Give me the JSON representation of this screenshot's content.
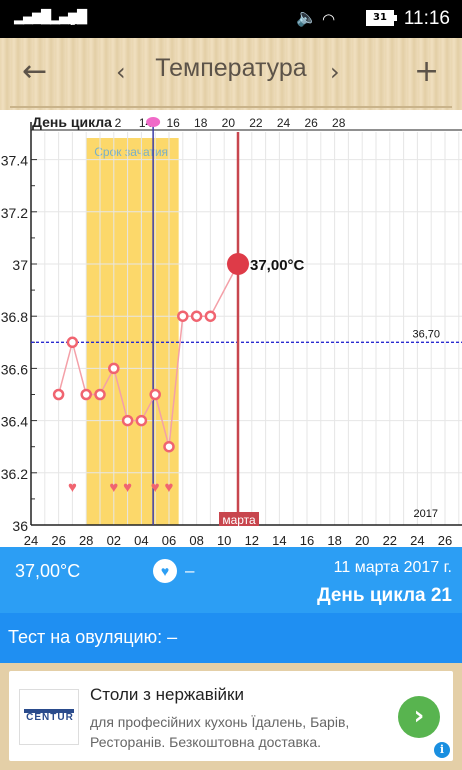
{
  "status_bar": {
    "time": "11:16",
    "battery": "31",
    "sim2_label": "2",
    "icons": [
      "signal-icon",
      "signal-icon",
      "volume-icon",
      "wifi-icon",
      "battery-icon"
    ]
  },
  "header": {
    "title": "Температура",
    "back_icon": "arrow-left-icon",
    "prev_icon": "chevron-left-icon",
    "next_icon": "chevron-right-icon",
    "add_icon": "plus-icon"
  },
  "chart_data": {
    "type": "line",
    "top_label": "День цикла",
    "cycle_ticks": [
      "2",
      "14",
      "16",
      "18",
      "20",
      "22",
      "24",
      "26",
      "28"
    ],
    "date_ticks": [
      "24",
      "26",
      "28",
      "02",
      "04",
      "06",
      "08",
      "10",
      "12",
      "14",
      "16",
      "18",
      "20",
      "22",
      "24",
      "26"
    ],
    "y_ticks": [
      "36",
      "36.2",
      "36.4",
      "36.6",
      "36.8",
      "37",
      "37.2",
      "37.4"
    ],
    "ylim": [
      36,
      37.46
    ],
    "series": [
      {
        "x_day_index": [
          2,
          3,
          4,
          5,
          6,
          7,
          8,
          9,
          10,
          11,
          12,
          13,
          14,
          15
        ],
        "values": [
          36.5,
          36.7,
          36.5,
          36.5,
          36.6,
          36.4,
          36.4,
          36.5,
          36.3,
          36.8,
          36.8,
          36.8,
          null,
          37.0
        ]
      }
    ],
    "hearts_day_index": [
      3,
      6,
      7,
      9,
      10
    ],
    "fertile_window": {
      "label": "Срок зачатия",
      "start_day_index": 4,
      "end_day_index": 10.7
    },
    "ovulation_day_index": 8.85,
    "today_day_index": 15,
    "today_label": "37,00°C",
    "cover_line": {
      "value": 36.7,
      "label": "36,70"
    },
    "month_label": "марта",
    "year_label": "2017"
  },
  "info": {
    "temperature": "37,00°C",
    "heart_icon": "heart-icon",
    "intercourse": "–",
    "date": "11 марта 2017 г.",
    "cycle_day": "День цикла 21"
  },
  "ovulation_test": {
    "label": "Тест на овуляцию:  –"
  },
  "ad": {
    "logo_text": "CENTUR",
    "title": "Столи з нержавійки",
    "description": "для професійних кухонь Їдалень, Барів, Ресторанів. Безкоштовна доставка.",
    "go_icon": "chevron-right-icon",
    "info_icon": "info-icon"
  },
  "colors": {
    "point": "#f06470",
    "line": "#f4a0a8",
    "fertile": "#fcd86a",
    "ovulation_line": "#3c3ca8",
    "today_line": "#c8464e",
    "cover_line": "#2a2ad0",
    "infobar": "#2c9ef4"
  }
}
